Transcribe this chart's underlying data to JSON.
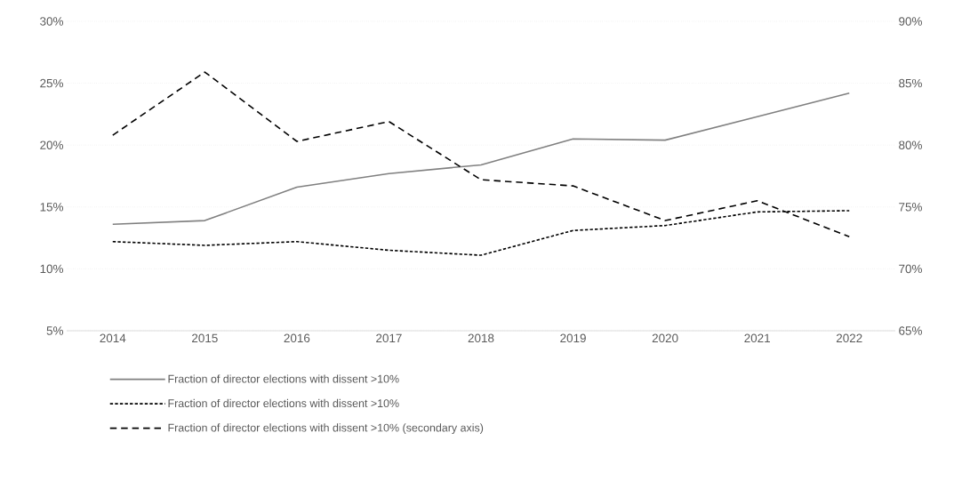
{
  "chart_data": {
    "type": "line",
    "categories": [
      "2014",
      "2015",
      "2016",
      "2017",
      "2018",
      "2019",
      "2020",
      "2021",
      "2022"
    ],
    "series": [
      {
        "name": "Fraction of director elections with dissent >10%",
        "color": "#808080",
        "line_style": "solid",
        "values": [
          13.6,
          13.9,
          16.6,
          17.7,
          18.4,
          20.5,
          20.4,
          22.3,
          24.2
        ]
      },
      {
        "name": "Fraction of director elections with dissent >10%",
        "color": "#000000",
        "line_style": "dotted",
        "values": [
          12.2,
          11.9,
          12.2,
          11.5,
          11.1,
          13.1,
          13.5,
          14.6,
          14.7
        ]
      },
      {
        "name": "Fraction of director elections with dissent >10% (secondary axis)",
        "color": "#000000",
        "line_style": "dashed",
        "axis": "y2",
        "values": [
          80.8,
          85.9,
          80.3,
          81.9,
          77.2,
          76.7,
          73.9,
          75.5,
          72.6
        ]
      }
    ],
    "ylim": [
      5,
      30
    ],
    "yticks": [
      {
        "value": 5,
        "label": "5%"
      },
      {
        "value": 10,
        "label": "10%"
      },
      {
        "value": 15,
        "label": "15%"
      },
      {
        "value": 20,
        "label": "20%"
      },
      {
        "value": 25,
        "label": "25%"
      },
      {
        "value": 30,
        "label": "30%"
      }
    ],
    "y2lim": [
      65,
      90
    ],
    "y2ticks": [
      {
        "value": 65,
        "label": "65%"
      },
      {
        "value": 70,
        "label": "70%"
      },
      {
        "value": 75,
        "label": "75%"
      },
      {
        "value": 80,
        "label": "80%"
      },
      {
        "value": 85,
        "label": "85%"
      },
      {
        "value": 90,
        "label": "90%"
      }
    ],
    "grid": "y",
    "legend": "bottom",
    "marker": "none"
  }
}
